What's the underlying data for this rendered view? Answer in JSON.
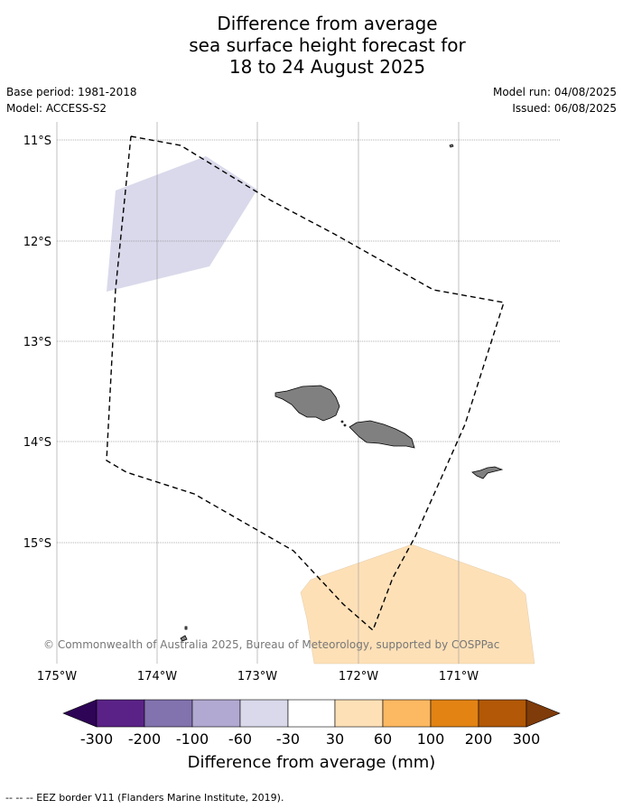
{
  "title": {
    "line1": "Difference from average",
    "line2": "sea surface height forecast for",
    "line3": "18 to 24 August 2025"
  },
  "meta": {
    "base_period": "Base period: 1981-2018",
    "model": "Model: ACCESS-S2",
    "model_run": "Model run: 04/08/2025",
    "issued": "Issued: 06/08/2025"
  },
  "map": {
    "lon_labels": [
      "175°W",
      "174°W",
      "173°W",
      "172°W",
      "171°W"
    ],
    "lat_labels": [
      "11°S",
      "12°S",
      "13°S",
      "14°S",
      "15°S"
    ],
    "copyright": "© Commonwealth of Australia 2025, Bureau of Meteorology, supported by COSPPac",
    "land_color": "#808080",
    "eez_style": "dashed-black"
  },
  "colorbar": {
    "title": "Difference from average (mm)",
    "ticks": [
      "-300",
      "-200",
      "-100",
      "-60",
      "-30",
      "30",
      "60",
      "100",
      "200",
      "300"
    ],
    "colors": [
      "#5a2287",
      "#8272ae",
      "#b1a9d1",
      "#d9d9eb",
      "#ffffff",
      "#fee0b7",
      "#fdb862",
      "#e28314",
      "#b25806"
    ],
    "under_color": "#2e0456",
    "over_color": "#7f3b09"
  },
  "footnote": "-- -- -- EEZ border V11 (Flanders Marine Institute, 2019)."
}
